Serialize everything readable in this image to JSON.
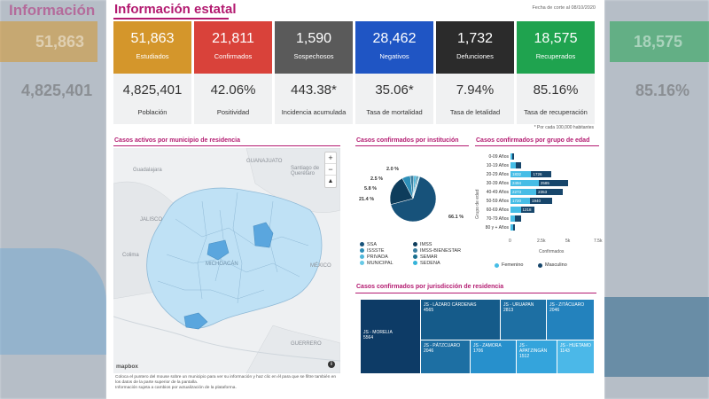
{
  "header": {
    "title": "Información estatal",
    "fecha": "Fecha de corte al 08/10/2020",
    "ghost_title": "Información"
  },
  "cards": [
    {
      "value": "51,863",
      "label": "Estudiados",
      "color": "#d4962b",
      "sub_value": "4,825,401",
      "sub_label": "Población"
    },
    {
      "value": "21,811",
      "label": "Confirmados",
      "color": "#d9423a",
      "sub_value": "42.06%",
      "sub_label": "Positividad"
    },
    {
      "value": "1,590",
      "label": "Sospechosos",
      "color": "#5a5a5a",
      "sub_value": "443.38*",
      "sub_label": "Incidencia acumulada"
    },
    {
      "value": "28,462",
      "label": "Negativos",
      "color": "#1f55c4",
      "sub_value": "35.06*",
      "sub_label": "Tasa de mortalidad"
    },
    {
      "value": "1,732",
      "label": "Defunciones",
      "color": "#2b2b2b",
      "sub_value": "7.94%",
      "sub_label": "Tasa de letalidad"
    },
    {
      "value": "18,575",
      "label": "Recuperados",
      "color": "#1fa34f",
      "sub_value": "85.16%",
      "sub_label": "Tasa de recuperación"
    }
  ],
  "foot_note": "* Por cada 100,000 habitantes",
  "ghost": {
    "left_value": "51,863",
    "left_sub": "4,825,401",
    "right_value": "18,575",
    "right_sub": "85.16%"
  },
  "map": {
    "title": "Casos activos por municipio de residencia",
    "labels": {
      "guanajuato": "GUANAJUATO",
      "santiago": "Santiago de\nQuerétaro",
      "guadalajara": "Guadalajara",
      "jalisco": "JALISCO",
      "colima": "Colima",
      "michoacan": "MICHOACÁN",
      "guerrero": "GUERRERO",
      "mexico": "MÉXICO"
    },
    "zoom_in": "+",
    "zoom_out": "−",
    "compass": "▲",
    "logo": "mapbox",
    "info": "i"
  },
  "notes": [
    "Coloca el puntero del mouse sobre un municipio para ver su información y haz clic en él para que se filtre también en los datos de la parte superior de la pantalla.",
    "Información sujeta a cambios por actualización de la plataforma."
  ],
  "institucion": {
    "title": "Casos confirmados por institución",
    "slices": [
      {
        "name": "SSA",
        "value": 66.1,
        "label": "66.1 %",
        "color": "#17527a"
      },
      {
        "name": "IMSS",
        "value": 21.4,
        "label": "21.4 %",
        "color": "#0e3d5c"
      },
      {
        "name": "ISSSTE",
        "value": 5.8,
        "label": "5.8 %",
        "color": "#2d8fb8"
      },
      {
        "name": "IMSS-BIENESTAR",
        "value": 2.5,
        "label": "2.5 %",
        "color": "#3b7fa0"
      },
      {
        "name": "PRIVADA",
        "value": 2.0,
        "label": "2.0 %",
        "color": "#4fb7da"
      },
      {
        "name": "SEMAR",
        "value": 1.2,
        "label": "",
        "color": "#1b6f8f"
      },
      {
        "name": "MUNICIPAL",
        "value": 0.6,
        "label": "",
        "color": "#67c9e6"
      },
      {
        "name": "SEDENA",
        "value": 0.4,
        "label": "",
        "color": "#35b3d9"
      }
    ]
  },
  "edad": {
    "title": "Casos confirmados por grupo de edad",
    "ylabel": "Grupo de edad",
    "xlabel": "Confirmados",
    "xticks": [
      "0",
      "2.5k",
      "5k",
      "7.5k"
    ],
    "xmax": 7500,
    "groups": [
      "0-09 Años",
      "10-19 Años",
      "20-29 Años",
      "30-39 Años",
      "40-49 Años",
      "50-59 Años",
      "60-69 Años",
      "70-79 Años",
      "80 y + Años"
    ],
    "femenino": [
      150,
      500,
      1832,
      2494,
      2273,
      1720,
      900,
      420,
      200
    ],
    "masculino": [
      150,
      400,
      1726,
      2585,
      2353,
      1940,
      1218,
      500,
      220
    ],
    "labels_fem": [
      "",
      "",
      "1832",
      "2494",
      "2273",
      "1720",
      "",
      "",
      ""
    ],
    "labels_mas": [
      "",
      "",
      "1726",
      "2585",
      "2353",
      "1940",
      "1218",
      "",
      ""
    ],
    "legend": {
      "femenino": "Femenino",
      "masculino": "Masculino"
    },
    "colors": {
      "femenino": "#46bde6",
      "masculino": "#17466b"
    }
  },
  "jurisdiccion": {
    "title": "Casos confirmados por jurisdicción de residencia",
    "cells": [
      {
        "name": "JS - MORELIA",
        "value": "5564"
      },
      {
        "name": "JS - LÁZARO CÁRDENAS",
        "value": "4565"
      },
      {
        "name": "JS - URUAPAN",
        "value": "2813"
      },
      {
        "name": "JS - ZITÁCUARO",
        "value": "2046"
      },
      {
        "name": "JS - PÁTZCUARO",
        "value": "2046"
      },
      {
        "name": "JS - ZAMORA",
        "value": "1706"
      },
      {
        "name": "JS - APATZINGÁN",
        "value": "1512"
      },
      {
        "name": "JS - HUETAMO",
        "value": "1143"
      }
    ]
  }
}
